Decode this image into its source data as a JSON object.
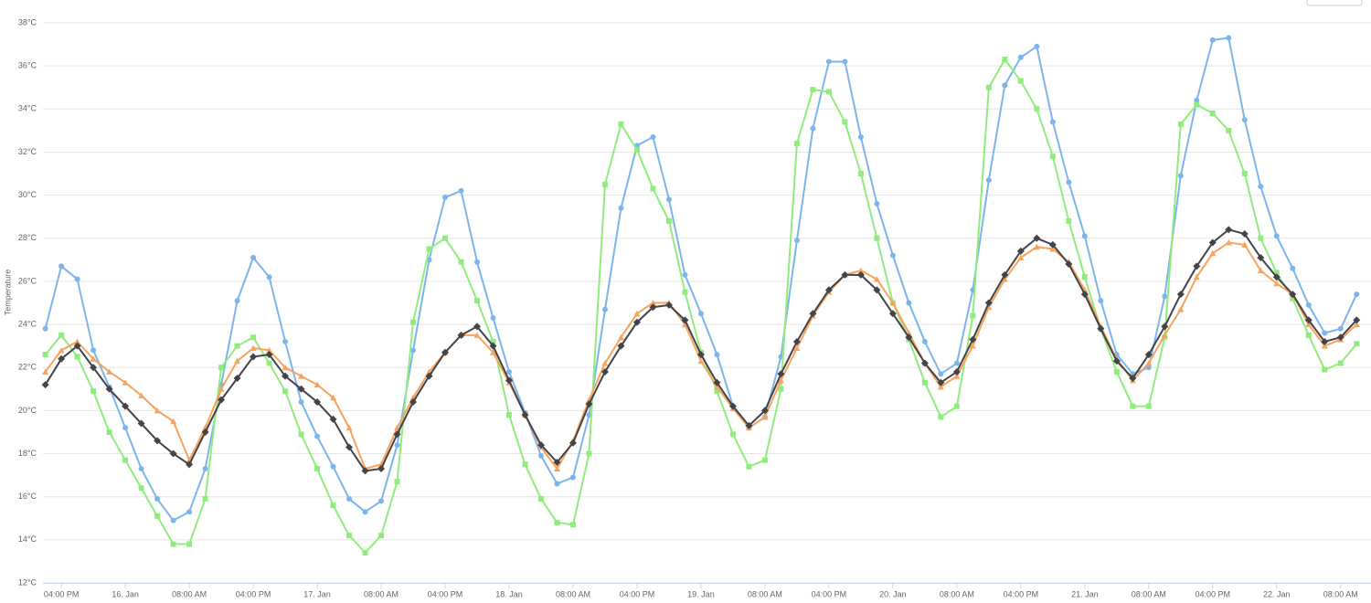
{
  "chart_data": {
    "type": "line",
    "y_axis_label": "Temperature",
    "x": [
      -10,
      -8,
      -6,
      -4,
      -2,
      0,
      2,
      4,
      6,
      8,
      10,
      12,
      14,
      16,
      18,
      20,
      22,
      24,
      26,
      28,
      30,
      32,
      34,
      36,
      38,
      40,
      42,
      44,
      46,
      48,
      50,
      52,
      54,
      56,
      58,
      60,
      62,
      64,
      66,
      68,
      70,
      72,
      74,
      76,
      78,
      80,
      82,
      84,
      86,
      88,
      90,
      92,
      94,
      96,
      98,
      100,
      102,
      104,
      106,
      108,
      110,
      112,
      114,
      116,
      118,
      120,
      122,
      124,
      126,
      128,
      130,
      132,
      134,
      136,
      138,
      140,
      142,
      144,
      146,
      148,
      150,
      152,
      154
    ],
    "xlim": [
      -10.3,
      155.8
    ],
    "xticks": [
      {
        "value": -8,
        "label": "04:00 PM"
      },
      {
        "value": 0,
        "label": "16. Jan"
      },
      {
        "value": 8,
        "label": "08:00 AM"
      },
      {
        "value": 16,
        "label": "04:00 PM"
      },
      {
        "value": 24,
        "label": "17. Jan"
      },
      {
        "value": 32,
        "label": "08:00 AM"
      },
      {
        "value": 40,
        "label": "04:00 PM"
      },
      {
        "value": 48,
        "label": "18. Jan"
      },
      {
        "value": 56,
        "label": "08:00 AM"
      },
      {
        "value": 64,
        "label": "04:00 PM"
      },
      {
        "value": 72,
        "label": "19. Jan"
      },
      {
        "value": 80,
        "label": "08:00 AM"
      },
      {
        "value": 88,
        "label": "04:00 PM"
      },
      {
        "value": 96,
        "label": "20. Jan"
      },
      {
        "value": 104,
        "label": "08:00 AM"
      },
      {
        "value": 112,
        "label": "04:00 PM"
      },
      {
        "value": 120,
        "label": "21. Jan"
      },
      {
        "value": 128,
        "label": "08:00 AM"
      },
      {
        "value": 136,
        "label": "04:00 PM"
      },
      {
        "value": 144,
        "label": "22. Jan"
      },
      {
        "value": 152,
        "label": "08:00 AM"
      }
    ],
    "ylim": [
      12,
      38
    ],
    "yticks": [
      {
        "value": 12,
        "label": "12°C"
      },
      {
        "value": 14,
        "label": "14°C"
      },
      {
        "value": 16,
        "label": "16°C"
      },
      {
        "value": 18,
        "label": "18°C"
      },
      {
        "value": 20,
        "label": "20°C"
      },
      {
        "value": 22,
        "label": "22°C"
      },
      {
        "value": 24,
        "label": "24°C"
      },
      {
        "value": 26,
        "label": "26°C"
      },
      {
        "value": 28,
        "label": "28°C"
      },
      {
        "value": 30,
        "label": "30°C"
      },
      {
        "value": 32,
        "label": "32°C"
      },
      {
        "value": 34,
        "label": "34°C"
      },
      {
        "value": 36,
        "label": "36°C"
      },
      {
        "value": 38,
        "label": "38°C"
      }
    ],
    "grid": true,
    "series": [
      {
        "color": "#7cb5ec",
        "marker": "circle",
        "values": [
          23.8,
          26.7,
          26.1,
          22.8,
          21.1,
          19.2,
          17.3,
          15.9,
          14.9,
          15.3,
          17.3,
          21.2,
          25.1,
          27.1,
          26.2,
          23.2,
          20.4,
          18.8,
          17.4,
          15.9,
          15.3,
          15.8,
          18.4,
          22.8,
          27.0,
          29.9,
          30.2,
          26.9,
          24.3,
          21.8,
          19.9,
          17.9,
          16.6,
          16.9,
          19.8,
          24.7,
          29.4,
          32.3,
          32.7,
          29.8,
          26.3,
          24.5,
          22.6,
          20.2,
          19.2,
          19.7,
          22.5,
          27.9,
          33.1,
          36.2,
          36.2,
          32.7,
          29.6,
          27.2,
          25.0,
          23.2,
          21.7,
          22.2,
          25.6,
          30.7,
          35.1,
          36.4,
          36.9,
          33.4,
          30.6,
          28.1,
          25.1,
          22.6,
          21.7,
          22.0,
          25.3,
          30.9,
          34.4,
          37.2,
          37.3,
          33.5,
          30.4,
          28.1,
          26.6,
          24.9,
          23.6,
          23.8,
          25.4
        ]
      },
      {
        "color": "#90ed7d",
        "marker": "square",
        "values": [
          22.6,
          23.5,
          22.5,
          20.9,
          19.0,
          17.7,
          16.4,
          15.1,
          13.8,
          13.8,
          15.9,
          22.0,
          23.0,
          23.4,
          22.2,
          20.9,
          18.9,
          17.3,
          15.6,
          14.2,
          13.4,
          14.2,
          16.7,
          24.1,
          27.5,
          28.0,
          26.9,
          25.1,
          23.2,
          19.8,
          17.5,
          15.9,
          14.8,
          14.7,
          18.0,
          30.5,
          33.3,
          32.1,
          30.3,
          28.8,
          25.5,
          22.7,
          20.9,
          18.9,
          17.4,
          17.7,
          21.0,
          32.4,
          34.9,
          34.8,
          33.4,
          31.0,
          28.0,
          25.0,
          23.3,
          21.3,
          19.7,
          20.2,
          24.4,
          35.0,
          36.3,
          35.3,
          34.0,
          31.8,
          28.8,
          26.2,
          23.8,
          21.8,
          20.2,
          20.2,
          23.4,
          33.3,
          34.2,
          33.8,
          33.0,
          31.0,
          28.0,
          26.4,
          25.2,
          23.5,
          21.9,
          22.2,
          23.1
        ]
      },
      {
        "color": "#f7a35c",
        "marker": "triangle",
        "values": [
          21.8,
          22.8,
          23.2,
          22.4,
          21.8,
          21.3,
          20.7,
          20.0,
          19.5,
          17.7,
          19.2,
          21.0,
          22.3,
          22.9,
          22.8,
          22.0,
          21.6,
          21.2,
          20.6,
          19.2,
          17.3,
          17.5,
          19.2,
          20.6,
          21.8,
          22.7,
          23.5,
          23.5,
          22.7,
          21.3,
          19.8,
          18.3,
          17.3,
          18.6,
          20.5,
          22.2,
          23.4,
          24.5,
          25.0,
          25.0,
          24.0,
          22.3,
          21.1,
          20.1,
          19.2,
          19.7,
          21.4,
          22.9,
          24.4,
          25.5,
          26.3,
          26.5,
          26.1,
          25.0,
          23.6,
          22.2,
          21.1,
          21.6,
          23.0,
          24.8,
          26.1,
          27.1,
          27.6,
          27.5,
          26.9,
          25.6,
          23.9,
          22.4,
          21.4,
          22.2,
          23.5,
          24.7,
          26.2,
          27.3,
          27.8,
          27.7,
          26.5,
          25.9,
          25.4,
          24.0,
          23.0,
          23.3,
          24.0
        ]
      },
      {
        "color": "#434348",
        "marker": "diamond",
        "values": [
          21.2,
          22.4,
          23.0,
          22.0,
          21.0,
          20.2,
          19.4,
          18.6,
          18.0,
          17.5,
          19.0,
          20.5,
          21.5,
          22.5,
          22.6,
          21.6,
          21.0,
          20.4,
          19.6,
          18.3,
          17.2,
          17.3,
          18.9,
          20.4,
          21.6,
          22.7,
          23.5,
          23.9,
          23.0,
          21.4,
          19.8,
          18.4,
          17.6,
          18.5,
          20.3,
          21.8,
          23.0,
          24.1,
          24.8,
          24.9,
          24.2,
          22.6,
          21.3,
          20.2,
          19.3,
          20.0,
          21.7,
          23.2,
          24.5,
          25.6,
          26.3,
          26.3,
          25.6,
          24.5,
          23.4,
          22.2,
          21.3,
          21.8,
          23.3,
          25.0,
          26.3,
          27.4,
          28.0,
          27.7,
          26.8,
          25.4,
          23.8,
          22.3,
          21.5,
          22.6,
          23.9,
          25.4,
          26.7,
          27.8,
          28.4,
          28.2,
          27.1,
          26.2,
          25.4,
          24.2,
          23.2,
          23.4,
          24.2
        ]
      }
    ]
  }
}
